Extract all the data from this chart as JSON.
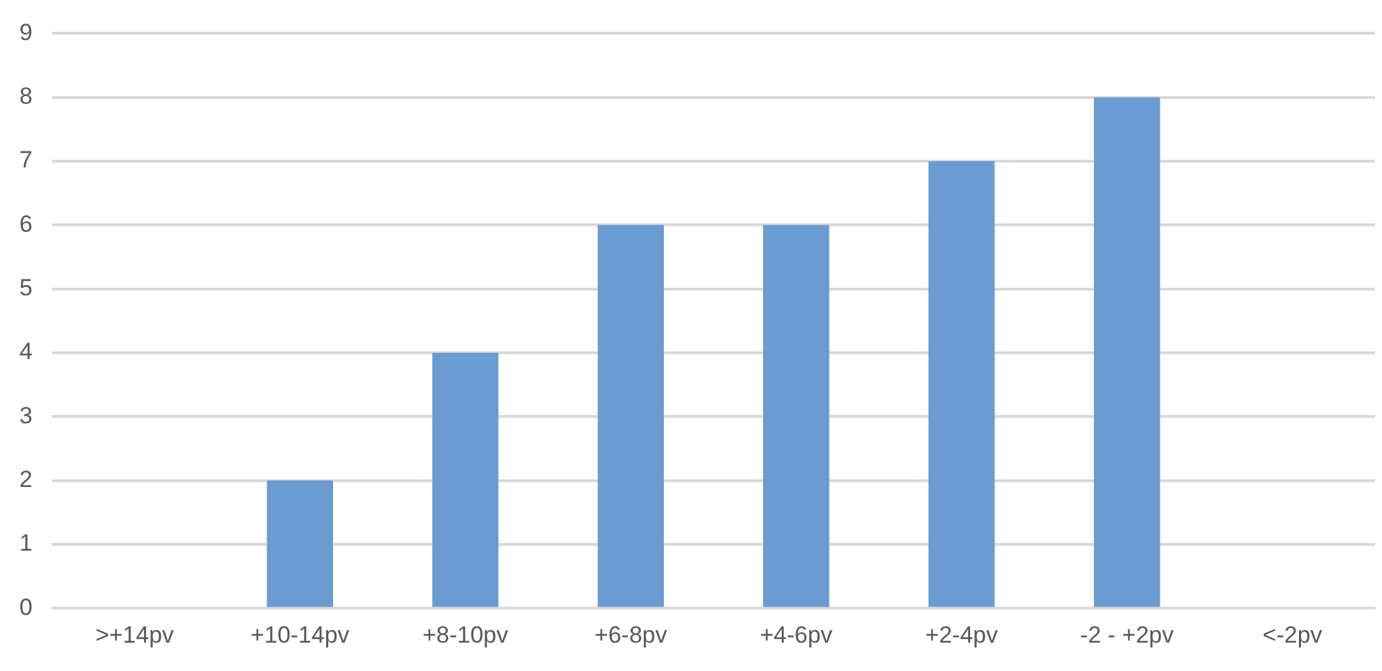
{
  "chart_data": {
    "type": "bar",
    "categories": [
      ">+14pv",
      "+10-14pv",
      "+8-10pv",
      "+6-8pv",
      "+4-6pv",
      "+2-4pv",
      "-2 - +2pv",
      "<-2pv"
    ],
    "values": [
      0,
      2,
      4,
      6,
      6,
      7,
      8,
      0
    ],
    "color": "#6a9bd1",
    "ylim": [
      0,
      9
    ],
    "yticks": [
      0,
      1,
      2,
      3,
      4,
      5,
      6,
      7,
      8,
      9
    ],
    "grid": "y",
    "legend": false
  }
}
